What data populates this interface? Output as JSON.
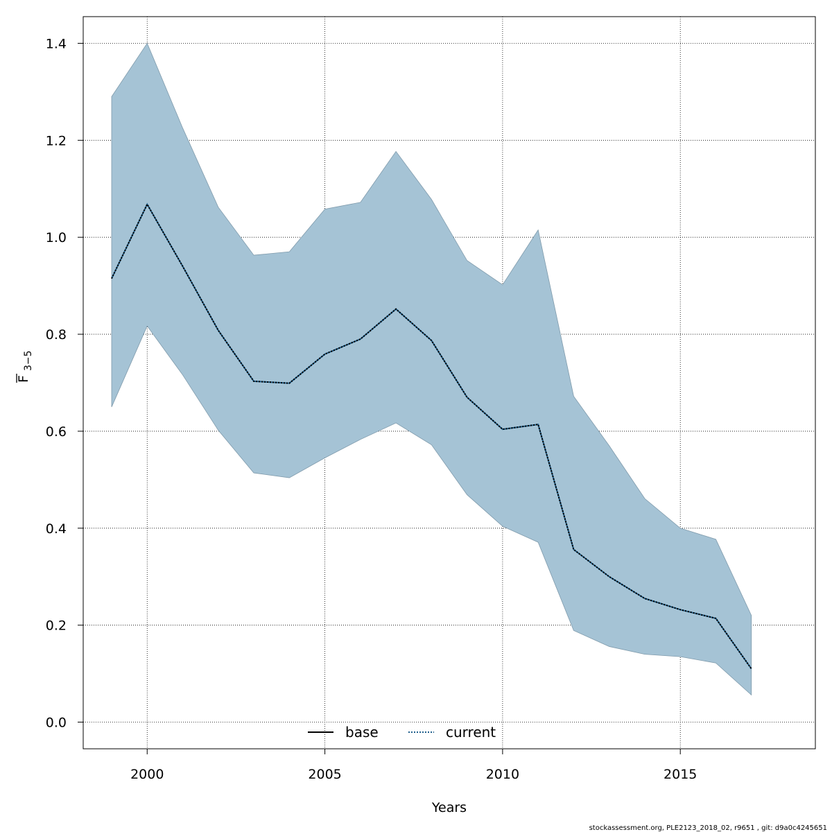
{
  "chart_data": {
    "type": "line",
    "xlabel": "Years",
    "ylabel_main": "F",
    "ylabel_sub": "3−5",
    "xlim": [
      1998.2,
      2018.8
    ],
    "ylim": [
      -0.055,
      1.455
    ],
    "x_ticks": [
      2000,
      2005,
      2010,
      2015
    ],
    "y_ticks": [
      "0.0",
      "0.2",
      "0.4",
      "0.6",
      "0.8",
      "1.0",
      "1.2",
      "1.4"
    ],
    "grid": true,
    "legend_position": "bottom",
    "band_color": "#a5c3d5",
    "band_edge_color": "#7f9aab",
    "series": [
      {
        "name": "base",
        "style": "solid",
        "color": "#000000",
        "x": [],
        "values": []
      },
      {
        "name": "current",
        "style": "dotted",
        "color": "#1f5f8b",
        "x": [
          1999,
          2000,
          2001,
          2002,
          2003,
          2004,
          2005,
          2006,
          2007,
          2008,
          2009,
          2010,
          2011,
          2012,
          2013,
          2014,
          2015,
          2016,
          2017
        ],
        "values": [
          0.915,
          1.068,
          0.94,
          0.808,
          0.703,
          0.699,
          0.759,
          0.79,
          0.852,
          0.787,
          0.67,
          0.604,
          0.614,
          0.356,
          0.3,
          0.255,
          0.232,
          0.214,
          0.11
        ],
        "lower": [
          0.65,
          0.817,
          0.716,
          0.602,
          0.514,
          0.504,
          0.545,
          0.583,
          0.617,
          0.572,
          0.469,
          0.404,
          0.371,
          0.189,
          0.156,
          0.14,
          0.135,
          0.122,
          0.056
        ],
        "upper": [
          1.29,
          1.4,
          1.225,
          1.062,
          0.963,
          0.97,
          1.058,
          1.072,
          1.177,
          1.078,
          0.952,
          0.902,
          1.015,
          0.672,
          0.57,
          0.461,
          0.4,
          0.377,
          0.22
        ]
      }
    ]
  },
  "footer_text": "stockassessment.org, PLE2123_2018_02, r9651 , git: d9a0c4245651"
}
